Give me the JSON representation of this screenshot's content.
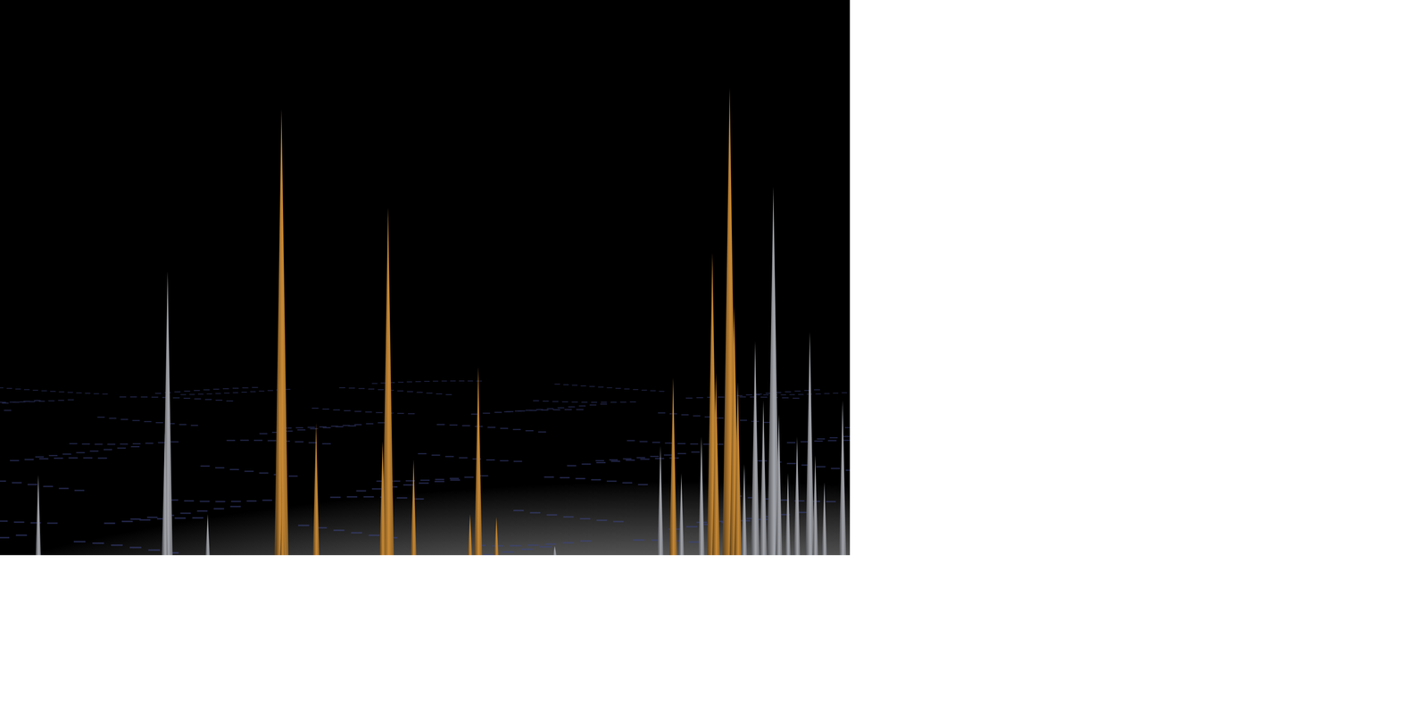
{
  "chart_data": {
    "type": "spike",
    "tick_labels": false,
    "grid": false,
    "xlim": [
      0,
      933
    ],
    "ylim": [
      0,
      610
    ],
    "series": [
      {
        "color": "#c98a35",
        "x": [
          309,
          307,
          347,
          310,
          426,
          420,
          454,
          525,
          516,
          545,
          739,
          782,
          801,
          806,
          786,
          810
        ],
        "values": [
          490,
          202,
          145,
          70,
          382,
          125,
          105,
          207,
          45,
          42,
          195,
          332,
          513,
          275,
          200,
          190
        ]
      },
      {
        "color": "#a4a6ad",
        "x": [
          42,
          184,
          181,
          228,
          609,
          725,
          748,
          770,
          817,
          829,
          838,
          849,
          855,
          865,
          875,
          889,
          895,
          905,
          925
        ],
        "values": [
          88,
          312,
          135,
          45,
          10,
          120,
          90,
          130,
          100,
          235,
          170,
          405,
          155,
          90,
          130,
          245,
          110,
          80,
          170
        ]
      }
    ]
  }
}
